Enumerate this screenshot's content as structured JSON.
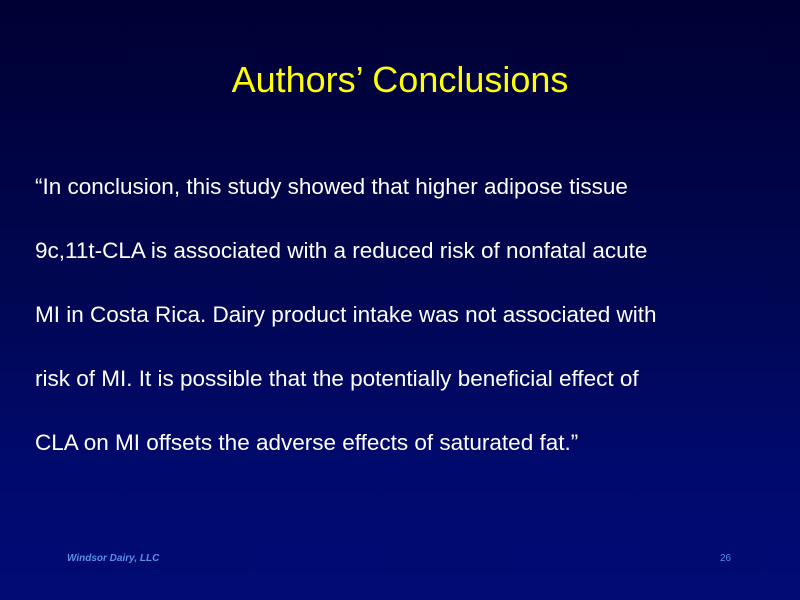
{
  "slide": {
    "title": "Authors’ Conclusions",
    "quote_lines": [
      "“In conclusion, this study showed that higher adipose tissue",
      "9c,11t-CLA is associated with a reduced risk of nonfatal acute",
      "MI in Costa Rica. Dairy product intake was not associated with",
      "risk of MI. It is possible that the potentially beneficial effect of",
      "CLA on MI offsets the adverse effects of saturated fat.”"
    ],
    "footer": {
      "company": "Windsor Dairy, LLC",
      "page_number": "26"
    }
  },
  "colors": {
    "title": "#ffff00",
    "body_text": "#ffffff",
    "footer_text": "#5b8fe0",
    "background_top": "#000033",
    "background_bottom": "#000b74"
  }
}
